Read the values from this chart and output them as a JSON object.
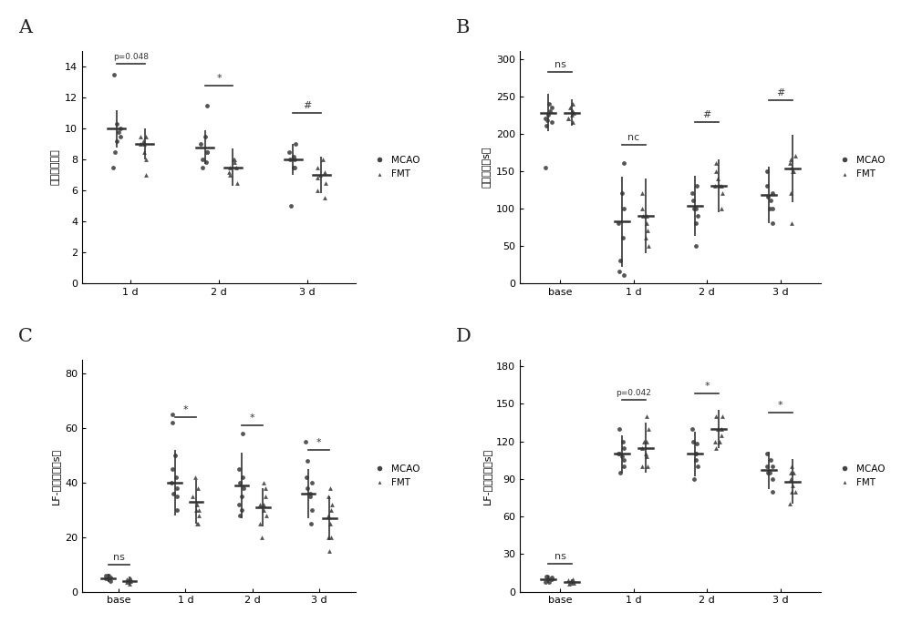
{
  "panel_label_fontsize": 15,
  "dot_color": "#555555",
  "dot_size": 12,
  "line_color": "#333333",
  "background_color": "#ffffff",
  "A": {
    "ylabel": "神经系统评分",
    "xticks": [
      "1 d",
      "2 d",
      "3 d"
    ],
    "ylim": [
      0,
      15
    ],
    "yticks": [
      0,
      2,
      4,
      6,
      8,
      10,
      12,
      14
    ],
    "groups": {
      "MCAO": {
        "means": [
          10.0,
          8.8,
          8.0
        ],
        "errors": [
          1.2,
          1.1,
          1.0
        ],
        "points": [
          [
            10.3,
            9.8,
            8.5,
            9.2,
            10.0,
            9.5,
            7.5,
            13.5
          ],
          [
            8.5,
            9.0,
            7.8,
            8.5,
            9.5,
            8.0,
            7.5,
            11.5
          ],
          [
            5.0,
            7.5,
            8.0,
            8.5,
            9.0,
            8.0,
            7.5,
            8.2
          ]
        ]
      },
      "FMT": {
        "means": [
          9.0,
          7.5,
          7.0
        ],
        "errors": [
          1.0,
          1.2,
          1.2
        ],
        "points": [
          [
            9.0,
            8.5,
            9.5,
            9.0,
            8.0,
            9.2,
            7.0,
            9.5
          ],
          [
            7.0,
            7.5,
            7.8,
            6.5,
            7.2,
            8.0,
            7.5,
            8.0
          ],
          [
            6.0,
            7.0,
            6.5,
            7.5,
            5.5,
            7.2,
            6.8,
            8.0
          ]
        ]
      }
    },
    "sig_annotations": [
      {
        "xi": 0,
        "y": 14.2,
        "label": "p=0.048"
      },
      {
        "xi": 1,
        "y": 12.8,
        "label": "*"
      },
      {
        "xi": 2,
        "y": 11.0,
        "label": "#"
      }
    ]
  },
  "B": {
    "ylabel": "停留时间（s）",
    "xticks": [
      "base",
      "1 d",
      "2 d",
      "3 d"
    ],
    "ylim": [
      0,
      310
    ],
    "yticks": [
      0,
      50,
      100,
      150,
      200,
      250,
      300
    ],
    "groups": {
      "MCAO": {
        "means": [
          228.0,
          82.0,
          103.0,
          118.0
        ],
        "errors": [
          25.0,
          60.0,
          40.0,
          38.0
        ],
        "points": [
          [
            240,
            230,
            218,
            225,
            235,
            215,
            220,
            210,
            155
          ],
          [
            160,
            80,
            60,
            100,
            120,
            30,
            15,
            10
          ],
          [
            100,
            80,
            110,
            120,
            90,
            130,
            100,
            50
          ],
          [
            80,
            100,
            120,
            130,
            115,
            110,
            100,
            150
          ]
        ]
      },
      "FMT": {
        "means": [
          228.0,
          90.0,
          130.0,
          153.0
        ],
        "errors": [
          18.0,
          50.0,
          35.0,
          45.0
        ],
        "points": [
          [
            230,
            220,
            225,
            215,
            235,
            228,
            240,
            220,
            230
          ],
          [
            90,
            100,
            80,
            50,
            120,
            60,
            70,
            90
          ],
          [
            130,
            140,
            120,
            160,
            130,
            100,
            150,
            130
          ],
          [
            160,
            155,
            165,
            80,
            150,
            170,
            150,
            120
          ]
        ]
      }
    },
    "sig_annotations": [
      {
        "xi": 0,
        "y": 282,
        "label": "ns"
      },
      {
        "xi": 1,
        "y": 185,
        "label": "nc"
      },
      {
        "xi": 2,
        "y": 215,
        "label": "#"
      },
      {
        "xi": 3,
        "y": 245,
        "label": "#"
      }
    ]
  },
  "C": {
    "ylabel": "LF-接触时间（s）",
    "xticks": [
      "base",
      "1 d",
      "2 d",
      "3 d"
    ],
    "ylim": [
      0,
      85
    ],
    "yticks": [
      0,
      20,
      40,
      60,
      80
    ],
    "groups": {
      "MCAO": {
        "means": [
          5.0,
          40.0,
          39.0,
          36.0
        ],
        "errors": [
          1.5,
          12.0,
          12.0,
          9.0
        ],
        "points": [
          [
            4.5,
            5.0,
            5.5,
            6.0,
            4.0,
            5.2,
            5.8,
            4.8
          ],
          [
            35,
            40,
            42,
            38,
            50,
            36,
            45,
            30,
            65,
            62
          ],
          [
            28,
            35,
            40,
            45,
            38,
            42,
            58,
            30,
            32
          ],
          [
            25,
            35,
            40,
            42,
            38,
            36,
            30,
            48,
            55
          ]
        ]
      },
      "FMT": {
        "means": [
          4.0,
          33.0,
          31.0,
          27.0
        ],
        "errors": [
          1.5,
          8.0,
          7.0,
          8.0
        ],
        "points": [
          [
            3.5,
            4.0,
            4.5,
            3.0,
            5.0,
            4.2,
            3.8,
            4.5
          ],
          [
            25,
            28,
            35,
            30,
            38,
            32,
            25,
            42,
            30
          ],
          [
            20,
            28,
            32,
            35,
            38,
            25,
            30,
            32,
            40
          ],
          [
            15,
            20,
            28,
            30,
            32,
            25,
            35,
            20,
            38
          ]
        ]
      }
    },
    "sig_annotations": [
      {
        "xi": 0,
        "y": 10,
        "label": "ns"
      },
      {
        "xi": 1,
        "y": 64,
        "label": "*"
      },
      {
        "xi": 2,
        "y": 61,
        "label": "*"
      },
      {
        "xi": 3,
        "y": 52,
        "label": "*"
      }
    ]
  },
  "D": {
    "ylabel": "LF-移除时间（s）",
    "xticks": [
      "base",
      "1 d",
      "2 d",
      "3 d"
    ],
    "ylim": [
      0,
      185
    ],
    "yticks": [
      0,
      30,
      60,
      90,
      120,
      150,
      180
    ],
    "groups": {
      "MCAO": {
        "means": [
          10.0,
          110.0,
          110.0,
          97.0
        ],
        "errors": [
          3.0,
          15.0,
          18.0,
          15.0
        ],
        "points": [
          [
            8,
            10,
            12,
            9,
            11,
            10,
            8,
            12
          ],
          [
            100,
            110,
            120,
            115,
            108,
            95,
            130,
            105,
            110
          ],
          [
            90,
            110,
            120,
            130,
            100,
            118,
            110,
            105
          ],
          [
            80,
            95,
            100,
            110,
            95,
            105,
            90,
            100
          ]
        ]
      },
      "FMT": {
        "means": [
          8.0,
          115.0,
          130.0,
          88.0
        ],
        "errors": [
          2.0,
          20.0,
          15.0,
          18.0
        ],
        "points": [
          [
            6,
            8,
            9,
            7,
            10,
            8,
            7,
            9
          ],
          [
            100,
            120,
            130,
            115,
            110,
            100,
            140,
            108,
            120
          ],
          [
            120,
            130,
            140,
            115,
            130,
            125,
            140,
            120
          ],
          [
            70,
            80,
            90,
            100,
            95,
            80,
            85,
            95
          ]
        ]
      }
    },
    "sig_annotations": [
      {
        "xi": 0,
        "y": 22,
        "label": "ns"
      },
      {
        "xi": 1,
        "y": 153,
        "label": "p=0.042"
      },
      {
        "xi": 2,
        "y": 158,
        "label": "*"
      },
      {
        "xi": 3,
        "y": 143,
        "label": "*"
      }
    ]
  }
}
